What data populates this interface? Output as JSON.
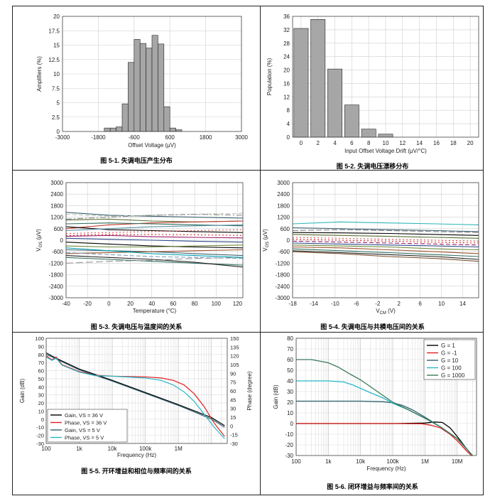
{
  "figures": [
    {
      "id": "fig1",
      "caption": "图 5-1. 失调电压产生分布",
      "chart_data": {
        "type": "bar",
        "title": "",
        "xlabel": "Offset Voltage (μV)",
        "ylabel": "Amplifiers (%)",
        "xlim": [
          -3000,
          3000
        ],
        "ylim": [
          0,
          20
        ],
        "xticks": [
          "-3000",
          "-1800",
          "-600",
          "600",
          "1800",
          "3000"
        ],
        "yticks": [
          "0",
          "2.5",
          "5",
          "7.5",
          "10",
          "12.5",
          "15",
          "17.5",
          "20"
        ],
        "bin_width": 200,
        "bin_centers": [
          -1500,
          -1300,
          -1100,
          -900,
          -700,
          -500,
          -300,
          -100,
          100,
          300,
          500,
          700,
          900
        ],
        "values": [
          0.6,
          0.6,
          0.8,
          4.8,
          12.0,
          16.0,
          15.3,
          14.5,
          16.7,
          15.2,
          4.3,
          0.6,
          0.3
        ],
        "grid": true
      }
    },
    {
      "id": "fig2",
      "caption": "图 5-2. 失调电压漂移分布",
      "chart_data": {
        "type": "bar",
        "title": "",
        "xlabel": "Input Offset Voltage Drift (μV/°C)",
        "ylabel": "Population (%)",
        "xlim": [
          -1,
          21
        ],
        "ylim": [
          0,
          36
        ],
        "xticks": [
          "0",
          "2",
          "4",
          "6",
          "8",
          "10",
          "12",
          "14",
          "16",
          "18",
          "20"
        ],
        "yticks": [
          "0",
          "4",
          "8",
          "12",
          "16",
          "20",
          "24",
          "28",
          "32",
          "36"
        ],
        "bin_width": 1.7,
        "bin_centers": [
          0,
          2,
          4,
          6,
          8,
          10
        ],
        "values": [
          32.4,
          35.1,
          20.3,
          9.6,
          2.4,
          0.9
        ],
        "grid": true
      }
    },
    {
      "id": "fig3",
      "caption": "图 5-3. 失调电压与温度间的关系",
      "chart_data": {
        "type": "line",
        "title": "",
        "xlabel": "Temperature (°C)",
        "ylabel": "V_OS (μV)",
        "xlim": [
          -40,
          125
        ],
        "ylim": [
          -3000,
          3000
        ],
        "xticks": [
          "-40",
          "-20",
          "0",
          "20",
          "40",
          "60",
          "80",
          "100",
          "120"
        ],
        "yticks": [
          "-3000",
          "-2400",
          "-1800",
          "-1200",
          "-600",
          "0",
          "600",
          "1200",
          "1800",
          "2400",
          "3000"
        ],
        "x": [
          -40,
          0,
          40,
          80,
          125
        ],
        "series": [
          {
            "color": "#3b5f6f",
            "dash": "",
            "values": [
              1450,
              1300,
              1250,
              1200,
              1150
            ]
          },
          {
            "color": "#b7c9b3",
            "dash": "6 3",
            "values": [
              1350,
              1250,
              1300,
              1350,
              1400
            ]
          },
          {
            "color": "#888888",
            "dash": "8 3 2 3",
            "values": [
              1100,
              1200,
              1300,
              1350,
              1300
            ]
          },
          {
            "color": "#556b2f",
            "dash": "",
            "values": [
              1050,
              1100,
              1000,
              950,
              1000
            ]
          },
          {
            "color": "#c0392b",
            "dash": "",
            "values": [
              600,
              800,
              900,
              950,
              1000
            ]
          },
          {
            "color": "#2f6f5f",
            "dash": "",
            "values": [
              850,
              900,
              850,
              800,
              750
            ]
          },
          {
            "color": "#000000",
            "dash": "",
            "values": [
              700,
              550,
              500,
              450,
              400
            ]
          },
          {
            "color": "#5b8fa3",
            "dash": "",
            "values": [
              500,
              600,
              700,
              750,
              800
            ]
          },
          {
            "color": "#e05050",
            "dash": "2 3",
            "values": [
              350,
              400,
              450,
              500,
              550
            ]
          },
          {
            "color": "#d62728",
            "dash": "2 3",
            "values": [
              250,
              300,
              300,
              280,
              250
            ]
          },
          {
            "color": "#9b1d6a",
            "dash": "",
            "values": [
              200,
              250,
              180,
              150,
              120
            ]
          },
          {
            "color": "#2c4a8a",
            "dash": "",
            "values": [
              100,
              50,
              0,
              -50,
              -100
            ]
          },
          {
            "color": "#000000",
            "dash": "",
            "values": [
              -100,
              -200,
              -300,
              -350,
              -400
            ]
          },
          {
            "color": "#6e8b3d",
            "dash": "",
            "values": [
              -300,
              -350,
              -350,
              -300,
              -250
            ]
          },
          {
            "color": "#3b5f6f",
            "dash": "",
            "values": [
              -500,
              -550,
              -600,
              -700,
              -800
            ]
          },
          {
            "color": "#a0522d",
            "dash": "",
            "values": [
              -700,
              -650,
              -600,
              -550,
              -500
            ]
          },
          {
            "color": "#7f9fbf",
            "dash": "6 3",
            "values": [
              -650,
              -750,
              -850,
              -900,
              -950
            ]
          },
          {
            "color": "#2f6f5f",
            "dash": "",
            "values": [
              -900,
              -1000,
              -1100,
              -1200,
              -1300
            ]
          },
          {
            "color": "#999999",
            "dash": "10 4",
            "values": [
              -1200,
              -1100,
              -1050,
              -950,
              -900
            ]
          },
          {
            "color": "#222222",
            "dash": "",
            "values": [
              -800,
              -900,
              -1000,
              -1150,
              -1400
            ]
          },
          {
            "color": "#00a0b0",
            "dash": "",
            "values": [
              -400,
              -550,
              -700,
              -800,
              -900
            ]
          }
        ],
        "grid": true
      }
    },
    {
      "id": "fig4",
      "caption": "图 5-4. 失调电压与共模电压间的关系",
      "chart_data": {
        "type": "line",
        "title": "",
        "xlabel": "V_CM (V)",
        "ylabel": "V_OS (μV)",
        "xlim": [
          -18,
          17
        ],
        "ylim": [
          -3000,
          3000
        ],
        "xticks": [
          "-18",
          "-14",
          "-10",
          "-6",
          "-2",
          "2",
          "6",
          "10",
          "14"
        ],
        "yticks": [
          "-3000",
          "-2400",
          "-1800",
          "-1200",
          "-600",
          "0",
          "600",
          "1200",
          "1800",
          "2400",
          "3000"
        ],
        "x": [
          -18,
          -9,
          0,
          9,
          17
        ],
        "series": [
          {
            "color": "#2fb5b5",
            "dash": "",
            "values": [
              850,
              950,
              900,
              850,
              800
            ]
          },
          {
            "color": "#3b5f6f",
            "dash": "",
            "values": [
              650,
              600,
              550,
              500,
              450
            ]
          },
          {
            "color": "#888888",
            "dash": "8 3",
            "values": [
              500,
              550,
              500,
              450,
              400
            ]
          },
          {
            "color": "#000000",
            "dash": "",
            "values": [
              400,
              380,
              350,
              300,
              250
            ]
          },
          {
            "color": "#556b2f",
            "dash": "",
            "values": [
              300,
              250,
              200,
              150,
              100
            ]
          },
          {
            "color": "#e05050",
            "dash": "2 3",
            "values": [
              150,
              100,
              50,
              0,
              -50
            ]
          },
          {
            "color": "#d62728",
            "dash": "2 3",
            "values": [
              50,
              0,
              -50,
              -100,
              -150
            ]
          },
          {
            "color": "#9b1d6a",
            "dash": "6 3",
            "values": [
              -50,
              -100,
              -150,
              -200,
              -250
            ]
          },
          {
            "color": "#2c4a8a",
            "dash": "",
            "values": [
              -150,
              -200,
              -250,
              -300,
              -350
            ]
          },
          {
            "color": "#6e8b3d",
            "dash": "",
            "values": [
              -250,
              -300,
              -350,
              -450,
              -500
            ]
          },
          {
            "color": "#a0522d",
            "dash": "",
            "values": [
              -350,
              -400,
              -500,
              -600,
              -700
            ]
          },
          {
            "color": "#2f6f5f",
            "dash": "",
            "values": [
              -450,
              -550,
              -650,
              -750,
              -850
            ]
          },
          {
            "color": "#222222",
            "dash": "",
            "values": [
              -550,
              -650,
              -750,
              -850,
              -1000
            ]
          },
          {
            "color": "#7a5230",
            "dash": "",
            "values": [
              -600,
              -700,
              -850,
              -950,
              -1100
            ]
          }
        ],
        "grid": true
      }
    },
    {
      "id": "fig5",
      "caption": "图 5-5. 开环增益和相位与频率间的关系",
      "chart_data": {
        "type": "line",
        "title": "",
        "xlabel": "Frequency (Hz)",
        "ylabel": "Gain (dB)",
        "y2label": "Phase (degree)",
        "xscale": "log",
        "xlim": [
          100,
          30000000
        ],
        "ylim": [
          -30,
          100
        ],
        "y2lim": [
          -30,
          150
        ],
        "xticks": [
          "100",
          "1k",
          "10k",
          "100k",
          "1M"
        ],
        "yticks": [
          "-30",
          "-20",
          "-10",
          "0",
          "10",
          "20",
          "30",
          "40",
          "50",
          "60",
          "70",
          "80",
          "90",
          "100"
        ],
        "y2ticks": [
          "-30",
          "-15",
          "0",
          "15",
          "30",
          "45",
          "60",
          "75",
          "90",
          "105",
          "120",
          "135",
          "150"
        ],
        "legend": [
          "Gain, VS = 36 V",
          "Phase, VS = 36 V",
          "Gain, VS = 5 V",
          "Phase, VS = 5 V"
        ],
        "legend_position": "bottom-left",
        "series": [
          {
            "name": "Gain, VS = 36 V",
            "axis": "left",
            "color": "#000000",
            "x": [
              100,
              150,
              300,
              1000,
              10000,
              100000,
              1000000,
              10000000,
              25000000
            ],
            "values": [
              82,
              78,
              72,
              62,
              48,
              33,
              18,
              2,
              -8
            ]
          },
          {
            "name": "Phase, VS = 36 V",
            "axis": "right",
            "color": "#e02020",
            "x": [
              100,
              150,
              200,
              300,
              1000,
              3000,
              10000,
              100000,
              300000,
              700000,
              1500000,
              3000000,
              6000000,
              12000000,
              25000000
            ],
            "values": [
              120,
              113,
              118,
              105,
              93,
              87,
              85,
              84,
              82,
              78,
              70,
              55,
              33,
              5,
              -18
            ]
          },
          {
            "name": "Gain, VS = 5 V",
            "axis": "left",
            "color": "#2f5f6f",
            "x": [
              100,
              150,
              300,
              1000,
              10000,
              100000,
              1000000,
              10000000,
              25000000
            ],
            "values": [
              80,
              77,
              71,
              61,
              47,
              32,
              17,
              0,
              -10
            ]
          },
          {
            "name": "Phase, VS = 5 V",
            "axis": "right",
            "color": "#29b8c8",
            "x": [
              100,
              150,
              200,
              300,
              1000,
              3000,
              10000,
              100000,
              300000,
              700000,
              1500000,
              3000000,
              6000000,
              12000000,
              25000000
            ],
            "values": [
              118,
              112,
              116,
              104,
              92,
              86,
              85,
              82,
              78,
              70,
              58,
              42,
              20,
              -2,
              -22
            ]
          }
        ],
        "grid": true
      }
    },
    {
      "id": "fig6",
      "caption": "图 5-6. 闭环增益与频率间的关系",
      "chart_data": {
        "type": "line",
        "title": "",
        "xlabel": "Frequency (Hz)",
        "ylabel": "Gain (dB)",
        "xscale": "log",
        "xlim": [
          100,
          40000000
        ],
        "ylim": [
          -30,
          80
        ],
        "xticks": [
          "100",
          "1k",
          "10k",
          "100k",
          "1M",
          "10M"
        ],
        "yticks": [
          "-30",
          "-20",
          "-10",
          "0",
          "10",
          "20",
          "30",
          "40",
          "50",
          "60",
          "70",
          "80"
        ],
        "legend": [
          "G = 1",
          "G = -1",
          "G = 10",
          "G = 100",
          "G = 1000"
        ],
        "legend_position": "top-right",
        "series": [
          {
            "name": "G = 1",
            "color": "#000000",
            "x": [
              100,
              100000,
              1000000,
              2000000,
              3500000,
              6000000,
              10000000,
              20000000,
              30000000
            ],
            "values": [
              0,
              0,
              0.5,
              1.5,
              1,
              -4,
              -12,
              -24,
              -30
            ]
          },
          {
            "name": "G = -1",
            "color": "#e02020",
            "x": [
              100,
              100000,
              800000,
              1500000,
              3000000,
              6000000,
              10000000,
              20000000,
              28000000
            ],
            "values": [
              0,
              0,
              -0.3,
              -1.5,
              -4,
              -10,
              -16,
              -26,
              -30
            ]
          },
          {
            "name": "G = 10",
            "color": "#2f5f6f",
            "x": [
              100,
              10000,
              50000,
              100000,
              200000,
              400000,
              1000000,
              3000000,
              10000000,
              20000000,
              30000000
            ],
            "values": [
              21,
              21,
              20.5,
              19.5,
              17,
              13,
              6,
              -3,
              -14,
              -24,
              -30
            ]
          },
          {
            "name": "G = 100",
            "color": "#29b8c8",
            "x": [
              100,
              1000,
              3000,
              6000,
              10000,
              20000,
              50000,
              100000,
              300000,
              1000000,
              3000000,
              10000000,
              20000000,
              30000000
            ],
            "values": [
              40,
              40,
              39,
              36,
              33,
              29,
              24,
              19,
              13,
              5,
              -3,
              -14,
              -24,
              -30
            ]
          },
          {
            "name": "G = 1000",
            "color": "#3a7a5a",
            "x": [
              100,
              300,
              1000,
              2000,
              5000,
              10000,
              30000,
              100000,
              300000,
              1000000,
              3000000,
              10000000,
              20000000,
              30000000
            ],
            "values": [
              60,
              60,
              57,
              53,
              46,
              41,
              31,
              20,
              13,
              5,
              -3,
              -14,
              -24,
              -30
            ]
          }
        ],
        "grid": true
      }
    }
  ]
}
